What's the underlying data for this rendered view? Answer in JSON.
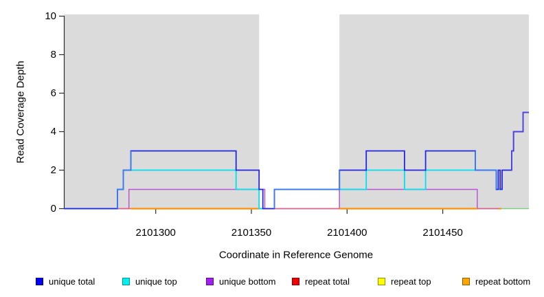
{
  "chart_data": {
    "type": "line",
    "subtype": "step-coverage-plot",
    "title": "",
    "xlabel": "Coordinate in Reference Genome",
    "ylabel": "Read Coverage Depth",
    "xlim": [
      2101252,
      2101495
    ],
    "ylim": [
      0,
      10
    ],
    "x_ticks": [
      2101300,
      2101350,
      2101400,
      2101450
    ],
    "y_ticks": [
      0,
      2,
      4,
      6,
      8,
      10
    ],
    "grid": false,
    "plot_bg": "#FFFFFF",
    "shaded_color": "#DBDBDB",
    "shaded_regions": [
      [
        2101252,
        2101354
      ],
      [
        2101396,
        2101495
      ]
    ],
    "masked_white_region": [
      2101354,
      2101396
    ],
    "series": [
      {
        "name": "repeat top",
        "line_color": "#7ECF7E",
        "width": 1.6,
        "steps": [
          [
            2101480,
            0
          ],
          [
            2101495,
            null
          ]
        ]
      },
      {
        "name": "unique bottom",
        "line_color": "#BA55D3",
        "width": 1.5,
        "steps": [
          [
            2101252,
            0
          ],
          [
            2101286,
            1
          ],
          [
            2101357,
            0
          ],
          [
            2101396,
            1
          ],
          [
            2101468,
            0
          ],
          [
            2101480,
            null
          ]
        ]
      },
      {
        "name": "repeat total",
        "line_color": "#E0607E",
        "width": 1.6,
        "steps": [
          [
            2101280,
            0
          ],
          [
            2101480,
            null
          ]
        ]
      },
      {
        "name": "repeat bottom",
        "line_color": "#FF9100",
        "width": 2.2,
        "steps": [
          [
            2101287,
            0
          ],
          [
            2101354,
            null
          ],
          [
            2101396,
            0
          ],
          [
            2101468,
            null
          ],
          [
            2101479.4,
            0
          ],
          [
            2101480.6,
            null
          ]
        ]
      },
      {
        "name": "unique top",
        "line_color": "#00E0EE",
        "width": 1.8,
        "steps": [
          [
            2101252,
            0
          ],
          [
            2101280,
            1
          ],
          [
            2101283,
            2
          ],
          [
            2101342,
            1
          ],
          [
            2101354,
            0
          ],
          [
            2101357,
            null
          ],
          [
            2101396,
            1
          ],
          [
            2101410,
            2
          ],
          [
            2101430,
            1
          ],
          [
            2101441,
            2
          ],
          [
            2101478,
            1
          ],
          [
            2101480,
            null
          ]
        ]
      },
      {
        "name": "unique total",
        "line_color": "#2525DF",
        "width": 1.8,
        "steps": [
          [
            2101252,
            0
          ],
          [
            2101280,
            1
          ],
          [
            2101283,
            2
          ],
          [
            2101287,
            3
          ],
          [
            2101342,
            2
          ],
          [
            2101354,
            1
          ],
          [
            2101356,
            0
          ],
          [
            2101362,
            1
          ],
          [
            2101396,
            2
          ],
          [
            2101410,
            3
          ],
          [
            2101430,
            2
          ],
          [
            2101441,
            3
          ],
          [
            2101467,
            2
          ],
          [
            2101478,
            1
          ],
          [
            2101479,
            2
          ],
          [
            2101480,
            1
          ],
          [
            2101481,
            2
          ],
          [
            2101486,
            3
          ],
          [
            2101487,
            4
          ],
          [
            2101492,
            5
          ],
          [
            2101495,
            null
          ]
        ]
      }
    ],
    "render_hints": {
      "recolor": [
        {
          "series": "unique total",
          "from": 2101280,
          "to": 2101287,
          "color": "#3B7DF2"
        },
        {
          "series": "unique total",
          "from": 2101362,
          "to": 2101396,
          "color": "#3B7DF2"
        },
        {
          "series": "unique total",
          "from": 2101467,
          "to": 2101478,
          "color": "#3B7DF2"
        },
        {
          "series": "unique total",
          "from": 2101486,
          "to": 2101495,
          "color": "#4B42E2"
        }
      ]
    },
    "legend": [
      {
        "label": "unique total",
        "color": "#0000EE",
        "border": "#000090"
      },
      {
        "label": "unique top",
        "color": "#00EEEE",
        "border": "#009898"
      },
      {
        "label": "unique bottom",
        "color": "#A020F0",
        "border": "#5E0D92"
      },
      {
        "label": "repeat total",
        "color": "#EE0000",
        "border": "#8E0000"
      },
      {
        "label": "repeat top",
        "color": "#FFFF00",
        "border": "#909000"
      },
      {
        "label": "repeat bottom",
        "color": "#FFA500",
        "border": "#925E00"
      }
    ]
  }
}
